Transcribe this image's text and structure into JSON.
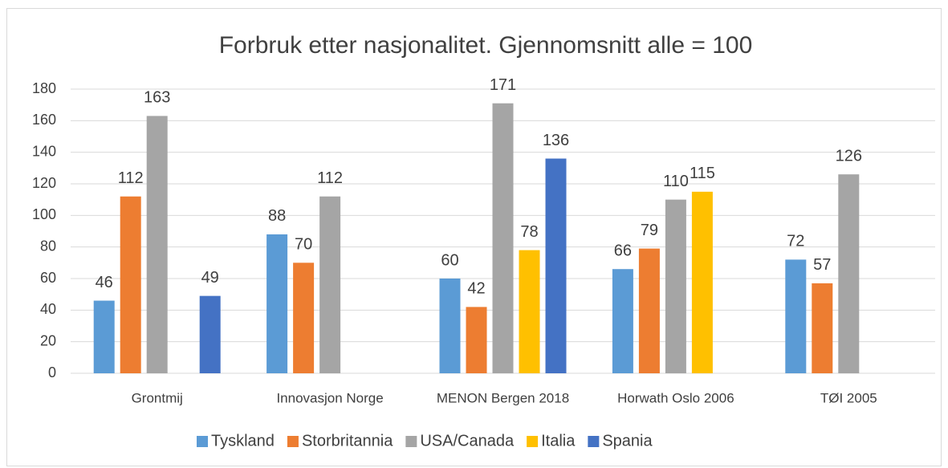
{
  "chart_data": {
    "type": "bar",
    "title": "Forbruk etter nasjonalitet. Gjennomsnitt alle = 100",
    "categories": [
      "Grontmij",
      "Innovasjon Norge",
      "MENON Bergen 2018",
      "Horwath Oslo 2006",
      "TØI 2005"
    ],
    "series": [
      {
        "name": "Tyskland",
        "color": "#5b9bd5",
        "values": [
          46,
          88,
          60,
          66,
          72
        ]
      },
      {
        "name": "Storbritannia",
        "color": "#ed7d31",
        "values": [
          112,
          70,
          42,
          79,
          57
        ]
      },
      {
        "name": "USA/Canada",
        "color": "#a5a5a5",
        "values": [
          163,
          112,
          171,
          110,
          126
        ]
      },
      {
        "name": "Italia",
        "color": "#ffc000",
        "values": [
          null,
          null,
          78,
          115,
          null
        ]
      },
      {
        "name": "Spania",
        "color": "#4472c4",
        "values": [
          49,
          null,
          136,
          null,
          null
        ]
      }
    ],
    "ylim": [
      0,
      180
    ],
    "yticks": [
      0,
      20,
      40,
      60,
      80,
      100,
      120,
      140,
      160,
      180
    ],
    "grid": true,
    "legend": "bottom"
  }
}
